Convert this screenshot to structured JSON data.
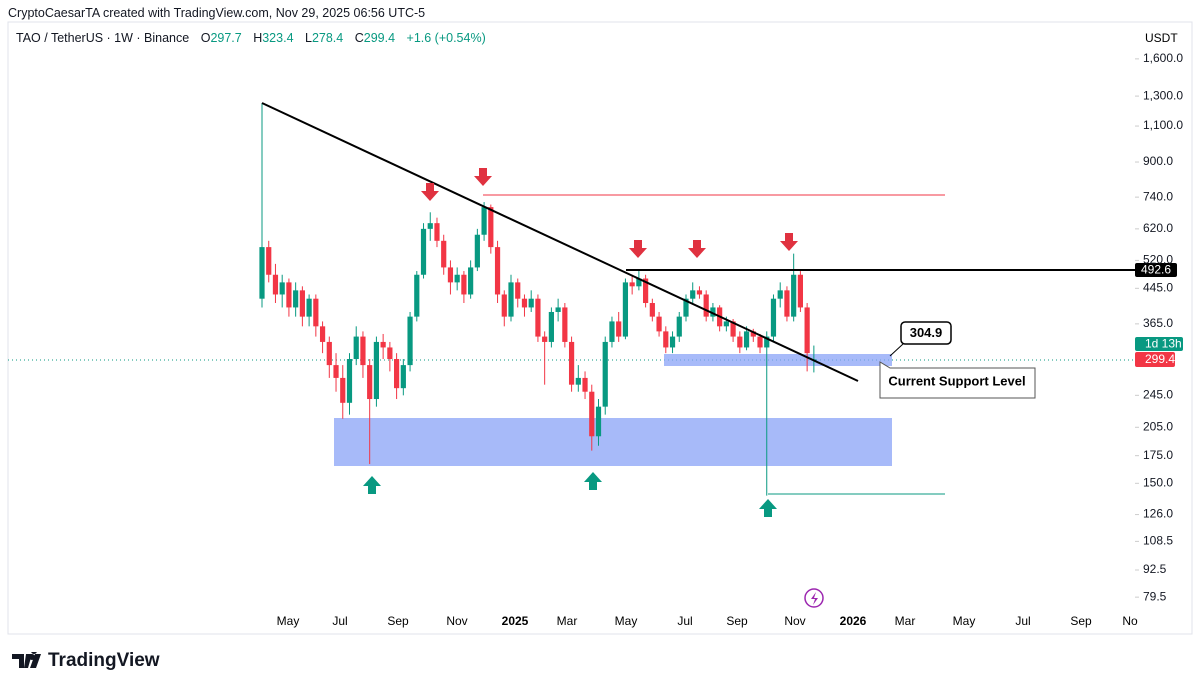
{
  "header": {
    "attribution": "CryptoCaesarTA created with TradingView.com, Nov 29, 2025 06:56 UTC-5",
    "symbol": "TAO / TetherUS · 1W · Binance",
    "ohlc": [
      {
        "label": "O",
        "value": "297.7"
      },
      {
        "label": "H",
        "value": "323.4"
      },
      {
        "label": "L",
        "value": "278.4"
      },
      {
        "label": "C",
        "value": "299.4"
      }
    ],
    "change": "+1.6 (+0.54%)"
  },
  "chart_data": {
    "type": "candlestick",
    "y_label": "USDT",
    "log_scale": true,
    "ylim": [
      74,
      1700
    ],
    "yticks": [
      {
        "value": 1600,
        "label": "1,600.0"
      },
      {
        "value": 1300,
        "label": "1,300.0"
      },
      {
        "value": 1100,
        "label": "1,100.0"
      },
      {
        "value": 900,
        "label": "900.0"
      },
      {
        "value": 740,
        "label": "740.0"
      },
      {
        "value": 620,
        "label": "620.0"
      },
      {
        "value": 520,
        "label": "520.0"
      },
      {
        "value": 445,
        "label": "445.0"
      },
      {
        "value": 365,
        "label": "365.0"
      },
      {
        "value": 245,
        "label": "245.0"
      },
      {
        "value": 205,
        "label": "205.0"
      },
      {
        "value": 175,
        "label": "175.0"
      },
      {
        "value": 150,
        "label": "150.0"
      },
      {
        "value": 126,
        "label": "126.0"
      },
      {
        "value": 108.5,
        "label": "108.5"
      },
      {
        "value": 92.5,
        "label": "92.5"
      },
      {
        "value": 79.5,
        "label": "79.5"
      }
    ],
    "x_labels": [
      "May",
      "Jul",
      "Sep",
      "Nov",
      "2025",
      "Mar",
      "May",
      "Jul",
      "Sep",
      "Nov",
      "2026",
      "Mar",
      "May",
      "Jul",
      "Sep",
      "No"
    ],
    "up_color": "#089981",
    "down_color": "#f23645",
    "ohlc": [
      [
        420,
        1250,
        400,
        560
      ],
      [
        560,
        580,
        460,
        480
      ],
      [
        480,
        510,
        410,
        430
      ],
      [
        430,
        480,
        400,
        460
      ],
      [
        460,
        470,
        380,
        400
      ],
      [
        400,
        460,
        380,
        440
      ],
      [
        440,
        450,
        360,
        380
      ],
      [
        380,
        430,
        360,
        420
      ],
      [
        420,
        430,
        340,
        360
      ],
      [
        360,
        370,
        310,
        330
      ],
      [
        330,
        340,
        270,
        290
      ],
      [
        290,
        310,
        250,
        270
      ],
      [
        270,
        290,
        215,
        235
      ],
      [
        235,
        310,
        220,
        300
      ],
      [
        300,
        360,
        290,
        340
      ],
      [
        340,
        350,
        270,
        290
      ],
      [
        290,
        300,
        167,
        240
      ],
      [
        240,
        340,
        230,
        330
      ],
      [
        330,
        345,
        300,
        320
      ],
      [
        320,
        330,
        280,
        300
      ],
      [
        300,
        310,
        240,
        255
      ],
      [
        255,
        300,
        245,
        290
      ],
      [
        290,
        390,
        280,
        380
      ],
      [
        380,
        490,
        370,
        480
      ],
      [
        480,
        640,
        470,
        620
      ],
      [
        620,
        680,
        580,
        640
      ],
      [
        640,
        660,
        560,
        580
      ],
      [
        580,
        600,
        480,
        500
      ],
      [
        500,
        520,
        430,
        460
      ],
      [
        460,
        500,
        440,
        480
      ],
      [
        480,
        490,
        410,
        430
      ],
      [
        430,
        520,
        420,
        500
      ],
      [
        500,
        620,
        490,
        600
      ],
      [
        600,
        720,
        580,
        700
      ],
      [
        700,
        710,
        540,
        560
      ],
      [
        560,
        580,
        410,
        430
      ],
      [
        430,
        440,
        360,
        380
      ],
      [
        380,
        480,
        370,
        460
      ],
      [
        460,
        470,
        400,
        420
      ],
      [
        420,
        430,
        380,
        400
      ],
      [
        400,
        440,
        390,
        420
      ],
      [
        420,
        430,
        330,
        340
      ],
      [
        340,
        350,
        260,
        330
      ],
      [
        330,
        400,
        320,
        390
      ],
      [
        390,
        420,
        370,
        400
      ],
      [
        400,
        410,
        320,
        330
      ],
      [
        330,
        340,
        250,
        260
      ],
      [
        260,
        290,
        250,
        270
      ],
      [
        270,
        280,
        240,
        250
      ],
      [
        250,
        260,
        180,
        195
      ],
      [
        195,
        240,
        185,
        230
      ],
      [
        230,
        340,
        220,
        330
      ],
      [
        330,
        380,
        320,
        370
      ],
      [
        370,
        390,
        330,
        340
      ],
      [
        340,
        470,
        335,
        460
      ],
      [
        460,
        480,
        430,
        450
      ],
      [
        450,
        490,
        440,
        470
      ],
      [
        470,
        480,
        400,
        410
      ],
      [
        410,
        420,
        370,
        380
      ],
      [
        380,
        390,
        340,
        350
      ],
      [
        350,
        360,
        310,
        320
      ],
      [
        320,
        350,
        310,
        340
      ],
      [
        340,
        390,
        330,
        380
      ],
      [
        380,
        430,
        370,
        420
      ],
      [
        420,
        460,
        410,
        440
      ],
      [
        440,
        450,
        420,
        430
      ],
      [
        430,
        440,
        370,
        380
      ],
      [
        380,
        410,
        370,
        400
      ],
      [
        400,
        405,
        350,
        360
      ],
      [
        360,
        380,
        350,
        370
      ],
      [
        370,
        375,
        330,
        340
      ],
      [
        340,
        350,
        310,
        320
      ],
      [
        320,
        360,
        315,
        350
      ],
      [
        350,
        355,
        330,
        340
      ],
      [
        340,
        345,
        310,
        320
      ],
      [
        320,
        350,
        140,
        340
      ],
      [
        340,
        430,
        330,
        420
      ],
      [
        420,
        460,
        400,
        440
      ],
      [
        440,
        450,
        370,
        380
      ],
      [
        380,
        540,
        370,
        480
      ],
      [
        480,
        490,
        390,
        400
      ],
      [
        400,
        410,
        280,
        310
      ],
      [
        297.7,
        323.4,
        278.4,
        299.4
      ]
    ]
  },
  "annotations": {
    "resistance_price": "492.6",
    "support_callout": "304.9",
    "support_label": "Current Support Level",
    "countdown": "1d 13h",
    "last_price": "299.4"
  },
  "footer": {
    "logo": "TradingView"
  }
}
